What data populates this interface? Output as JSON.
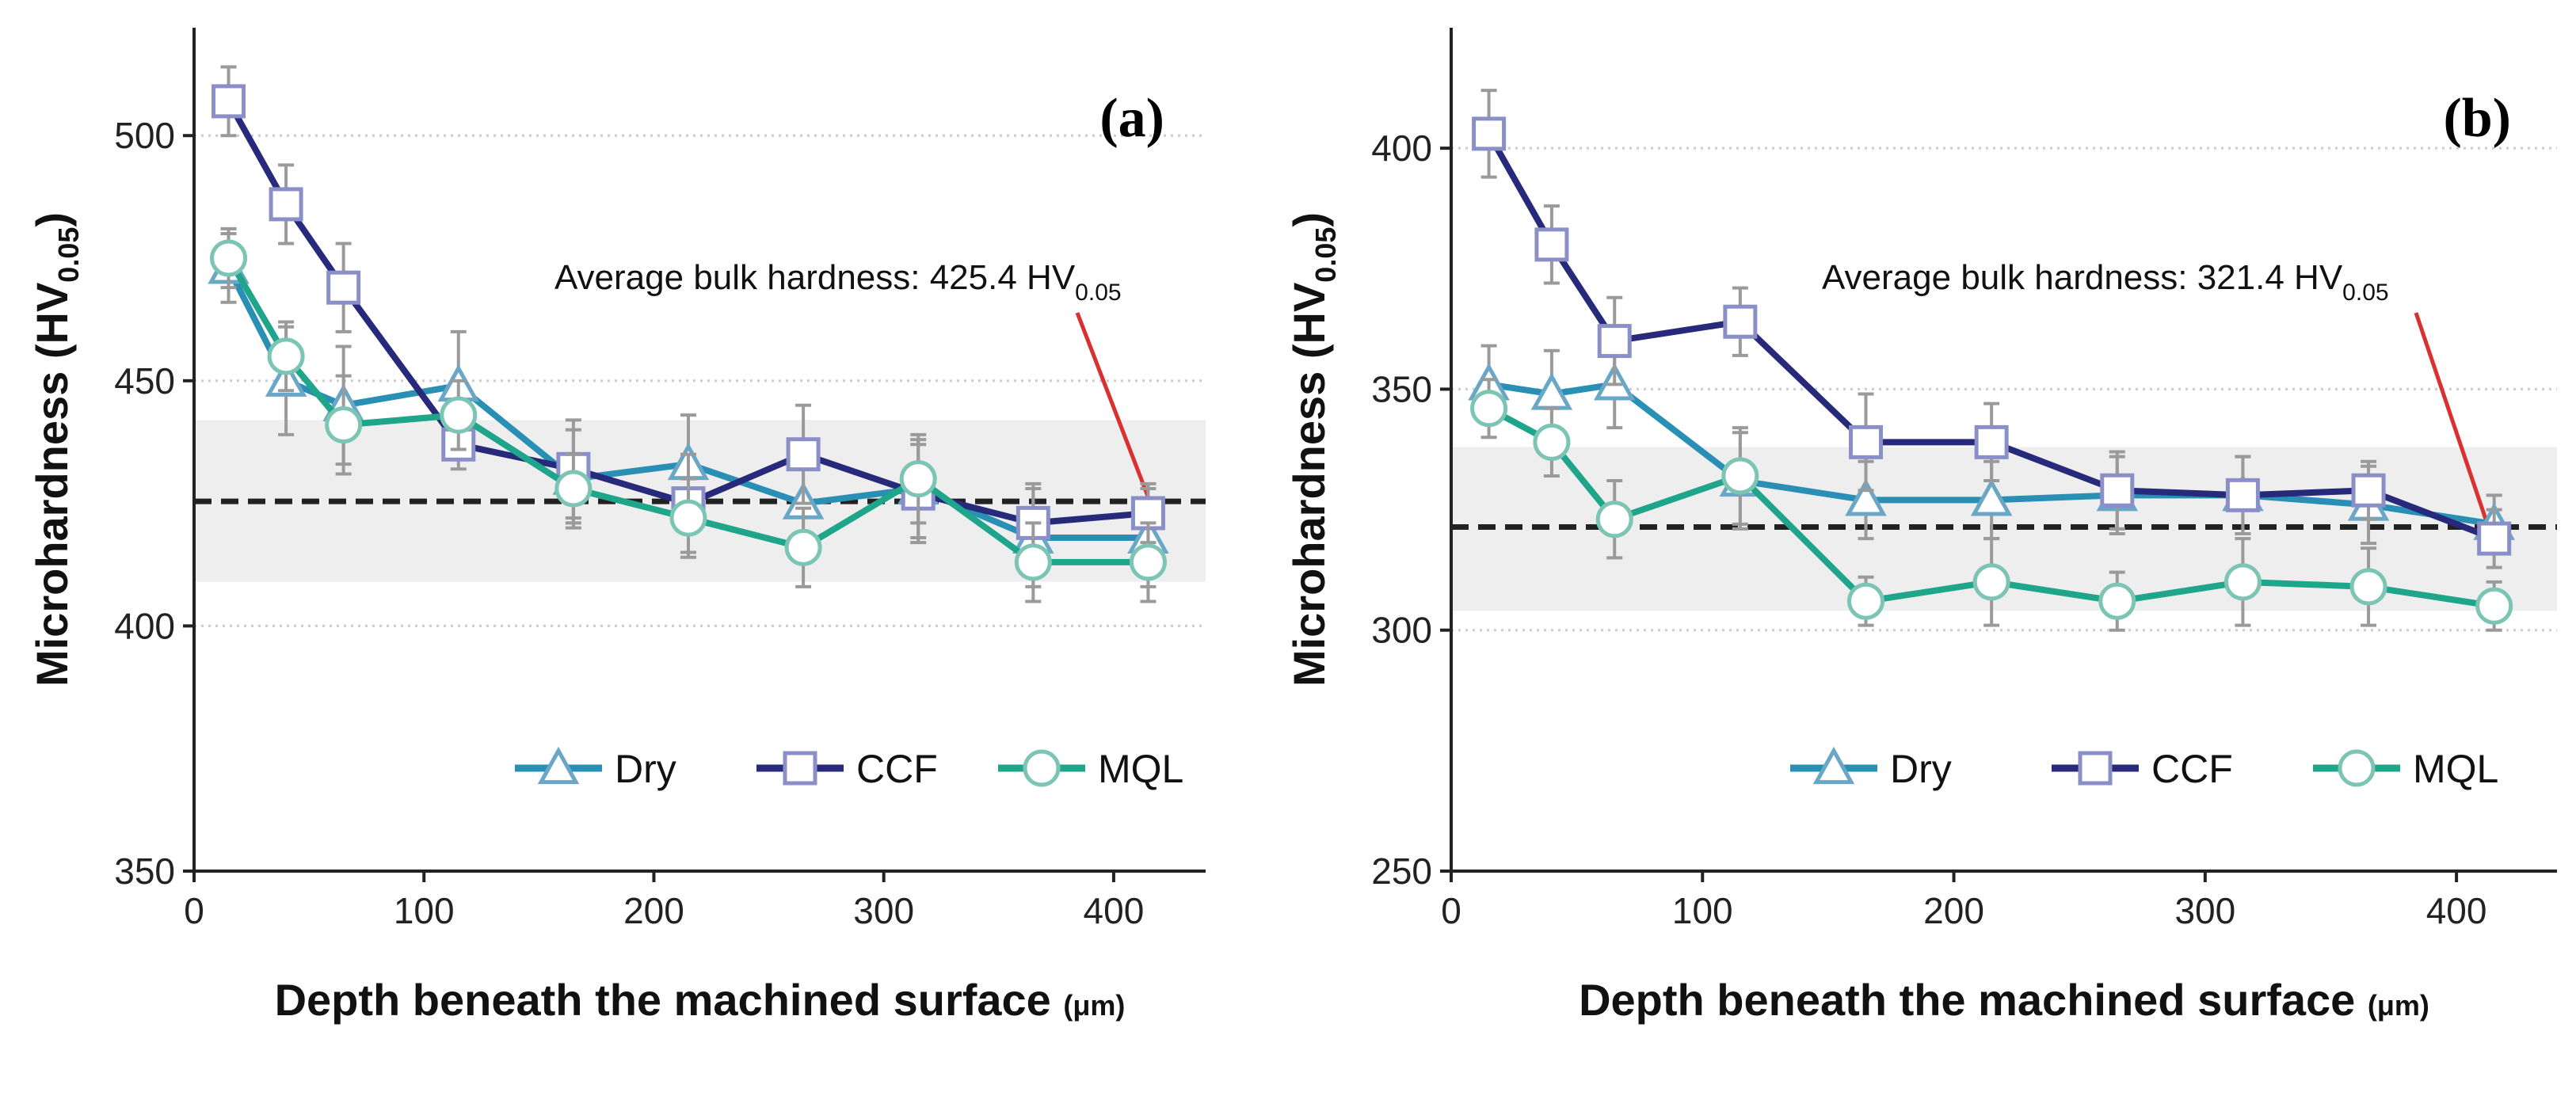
{
  "colors": {
    "dry": "#2a8fb5",
    "ccf": "#27297a",
    "mql": "#1fa58a",
    "marker_fill": "#ffffff",
    "marker_dry_edge": "#6aa6c6",
    "marker_ccf_edge": "#8a8fc8",
    "marker_mql_edge": "#7cc4b4",
    "errorbar": "#9a9a9a",
    "band": "#eeeeee",
    "grid": "#cccccc",
    "bulk_line": "#222222",
    "arrow": "#d93030"
  },
  "chart_data": [
    {
      "type": "line",
      "panel_label": "(a)",
      "xlabel": "Depth beneath the machined surface",
      "xlabel_unit": "(μm)",
      "ylabel_main": "Microhardness (HV",
      "ylabel_sub": "0.05",
      "ylabel_close": ")",
      "xlim": [
        0,
        440
      ],
      "ylim": [
        350,
        522
      ],
      "x_ticks": [
        0,
        100,
        200,
        300,
        400
      ],
      "y_ticks": [
        350,
        400,
        450,
        500
      ],
      "gridlines_y": [
        400,
        450,
        500
      ],
      "band": [
        409,
        442
      ],
      "bulk_hardness": 425.4,
      "annotation_main": "Average bulk hardness: 425.4 HV",
      "annotation_sub": "0.05",
      "x": [
        15,
        40,
        65,
        115,
        165,
        215,
        265,
        315,
        365,
        415
      ],
      "series": [
        {
          "name": "Dry",
          "marker": "triangle",
          "values": [
            473,
            450,
            445,
            449,
            430,
            433,
            425,
            428,
            418,
            418
          ],
          "errors": [
            7,
            11,
            12,
            11,
            10,
            10,
            10,
            10,
            10,
            10
          ]
        },
        {
          "name": "CCF",
          "marker": "square",
          "values": [
            507,
            486,
            469,
            437,
            432,
            425,
            435,
            427,
            421,
            423
          ],
          "errors": [
            7,
            8,
            9,
            5,
            10,
            10,
            10,
            10,
            8,
            6
          ]
        },
        {
          "name": "MQL",
          "marker": "circle",
          "values": [
            475,
            455,
            441,
            443,
            428,
            422,
            416,
            430,
            413,
            413
          ],
          "errors": [
            6,
            7,
            10,
            7,
            7,
            8,
            8,
            9,
            8,
            8
          ]
        }
      ]
    },
    {
      "type": "line",
      "panel_label": "(b)",
      "xlabel": "Depth beneath the machined surface",
      "xlabel_unit": "(μm)",
      "ylabel_main": "Microhardness (HV",
      "ylabel_sub": "0.05",
      "ylabel_close": ")",
      "xlim": [
        0,
        440
      ],
      "ylim": [
        250,
        425
      ],
      "x_ticks": [
        0,
        100,
        200,
        300,
        400
      ],
      "y_ticks": [
        250,
        300,
        350,
        400
      ],
      "gridlines_y": [
        300,
        350,
        400
      ],
      "band": [
        304,
        338
      ],
      "bulk_hardness": 321.4,
      "annotation_main": "Average bulk hardness: 321.4 HV",
      "annotation_sub": "0.05",
      "x": [
        15,
        40,
        65,
        115,
        165,
        215,
        265,
        315,
        365,
        415
      ],
      "series": [
        {
          "name": "Dry",
          "marker": "triangle",
          "values": [
            351,
            349,
            351,
            331,
            327,
            327,
            328,
            328,
            326,
            322
          ],
          "errors": [
            8,
            9,
            9,
            10,
            8,
            8,
            8,
            8,
            8,
            6
          ]
        },
        {
          "name": "CCF",
          "marker": "square",
          "values": [
            403,
            380,
            360,
            364,
            339,
            339,
            329,
            328,
            329,
            319
          ],
          "errors": [
            9,
            8,
            9,
            7,
            10,
            8,
            8,
            8,
            6,
            6
          ]
        },
        {
          "name": "MQL",
          "marker": "circle",
          "values": [
            346,
            339,
            323,
            332,
            306,
            310,
            306,
            310,
            309,
            305
          ],
          "errors": [
            6,
            7,
            8,
            10,
            5,
            9,
            6,
            9,
            8,
            5
          ]
        }
      ]
    }
  ]
}
